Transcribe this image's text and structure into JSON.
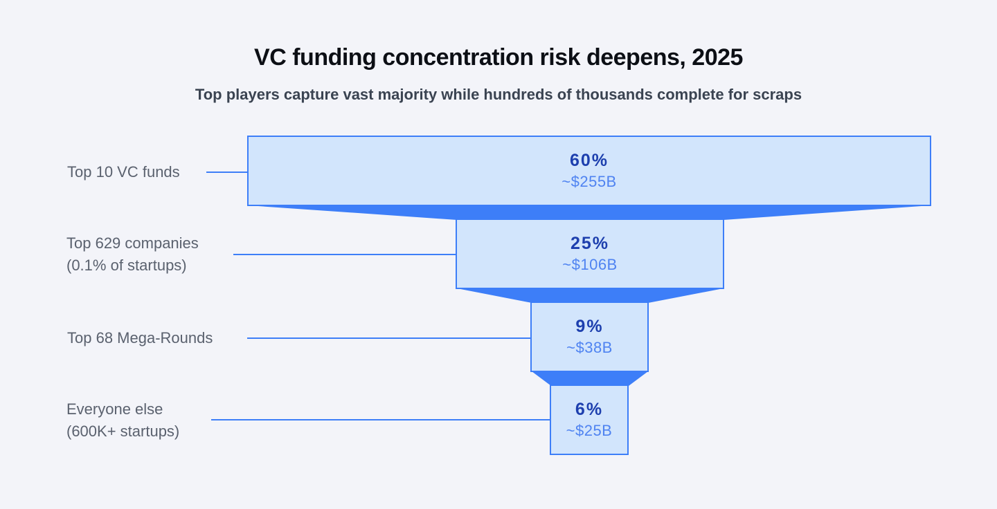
{
  "title": "VC funding concentration risk deepens, 2025",
  "subtitle": "Top players capture vast majority while hundreds of thousands complete for scraps",
  "colors": {
    "background": "#f3f4f9",
    "stage_fill": "#d2e5fc",
    "stage_border": "#3d7ef8",
    "connector_band": "#3d7ef8",
    "percent_text": "#1d3fae",
    "value_text": "#4f83f1",
    "label_text": "#5a616e",
    "title_text": "#0c0f15",
    "subtitle_text": "#3a4351"
  },
  "chart_data": {
    "type": "funnel",
    "title": "VC funding concentration risk deepens, 2025",
    "subtitle": "Top players capture vast majority while hundreds of thousands complete for scraps",
    "orientation": "vertical-top-down",
    "stages": [
      {
        "label_line1": "Top 10 VC funds",
        "label_line2": "",
        "percent_label": "60%",
        "value_label": "~$255B",
        "percent": 60,
        "value_billions_usd": 255
      },
      {
        "label_line1": "Top 629 companies",
        "label_line2": "(0.1% of startups)",
        "percent_label": "25%",
        "value_label": "~$106B",
        "percent": 25,
        "value_billions_usd": 106
      },
      {
        "label_line1": "Top 68 Mega-Rounds",
        "label_line2": "",
        "percent_label": "9%",
        "value_label": "~$38B",
        "percent": 9,
        "value_billions_usd": 38
      },
      {
        "label_line1": "Everyone else",
        "label_line2": "(600K+ startups)",
        "percent_label": "6%",
        "value_label": "~$25B",
        "percent": 6,
        "value_billions_usd": 25
      }
    ]
  }
}
